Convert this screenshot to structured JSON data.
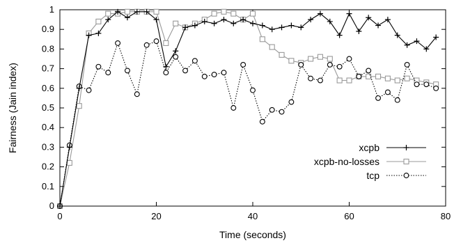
{
  "chart_data": {
    "type": "line",
    "title": "",
    "xlabel": "Time (seconds)",
    "ylabel": "Fairness (Jain index)",
    "xlim": [
      0,
      80
    ],
    "ylim": [
      0,
      1
    ],
    "xticks": [
      0,
      20,
      40,
      60,
      80
    ],
    "yticks": [
      0,
      0.1,
      0.2,
      0.3,
      0.4,
      0.5,
      0.6,
      0.7,
      0.8,
      0.9,
      1
    ],
    "xtick_labels": [
      "0",
      "20",
      "40",
      "60",
      "80"
    ],
    "ytick_labels": [
      "0",
      "0.1",
      "0.2",
      "0.3",
      "0.4",
      "0.5",
      "0.6",
      "0.7",
      "0.8",
      "0.9",
      "1"
    ],
    "grid": false,
    "legend_position": "center-right",
    "series": [
      {
        "name": "xcpb",
        "marker": "plus",
        "line_style": "solid",
        "color": "#000000",
        "x": [
          0,
          2,
          4,
          6,
          8,
          10,
          12,
          14,
          16,
          18,
          20,
          22,
          24,
          26,
          28,
          30,
          32,
          34,
          36,
          38,
          40,
          42,
          44,
          46,
          48,
          50,
          52,
          54,
          56,
          58,
          60,
          62,
          64,
          66,
          68,
          70,
          72,
          74,
          76,
          78
        ],
        "y": [
          0,
          0.3,
          0.6,
          0.87,
          0.88,
          0.95,
          0.99,
          0.96,
          0.99,
          0.99,
          0.95,
          0.71,
          0.79,
          0.91,
          0.92,
          0.94,
          0.93,
          0.95,
          0.93,
          0.95,
          0.93,
          0.92,
          0.9,
          0.91,
          0.92,
          0.91,
          0.95,
          0.98,
          0.94,
          0.87,
          0.98,
          0.89,
          0.96,
          0.92,
          0.95,
          0.87,
          0.82,
          0.84,
          0.8,
          0.86
        ]
      },
      {
        "name": "xcpb-no-losses",
        "marker": "square",
        "line_style": "solid",
        "color": "#999999",
        "x": [
          0,
          2,
          4,
          6,
          8,
          10,
          12,
          14,
          16,
          18,
          20,
          22,
          24,
          26,
          28,
          30,
          32,
          34,
          36,
          38,
          40,
          42,
          44,
          46,
          48,
          50,
          52,
          54,
          56,
          58,
          60,
          62,
          64,
          66,
          68,
          70,
          72,
          74,
          76,
          78
        ],
        "y": [
          0,
          0.22,
          0.51,
          0.88,
          0.94,
          0.98,
          0.98,
          0.99,
          0.99,
          0.99,
          0.99,
          0.83,
          0.93,
          0.91,
          0.93,
          0.95,
          0.98,
          0.99,
          0.98,
          0.95,
          0.98,
          0.85,
          0.81,
          0.77,
          0.74,
          0.73,
          0.75,
          0.76,
          0.75,
          0.64,
          0.64,
          0.66,
          0.66,
          0.66,
          0.65,
          0.64,
          0.65,
          0.64,
          0.63,
          0.62
        ]
      },
      {
        "name": "tcp",
        "marker": "circle",
        "line_style": "dotted",
        "color": "#000000",
        "x": [
          0,
          2,
          4,
          6,
          8,
          10,
          12,
          14,
          16,
          18,
          20,
          22,
          24,
          26,
          28,
          30,
          32,
          34,
          36,
          38,
          40,
          42,
          44,
          46,
          48,
          50,
          52,
          54,
          56,
          58,
          60,
          62,
          64,
          66,
          68,
          70,
          72,
          74,
          76,
          78
        ],
        "y": [
          0,
          0.31,
          0.61,
          0.59,
          0.71,
          0.68,
          0.83,
          0.69,
          0.57,
          0.82,
          0.84,
          0.68,
          0.76,
          0.69,
          0.74,
          0.66,
          0.67,
          0.68,
          0.5,
          0.72,
          0.59,
          0.43,
          0.49,
          0.48,
          0.53,
          0.72,
          0.65,
          0.64,
          0.72,
          0.71,
          0.75,
          0.66,
          0.69,
          0.55,
          0.58,
          0.54,
          0.72,
          0.62,
          0.62,
          0.6
        ]
      }
    ]
  }
}
